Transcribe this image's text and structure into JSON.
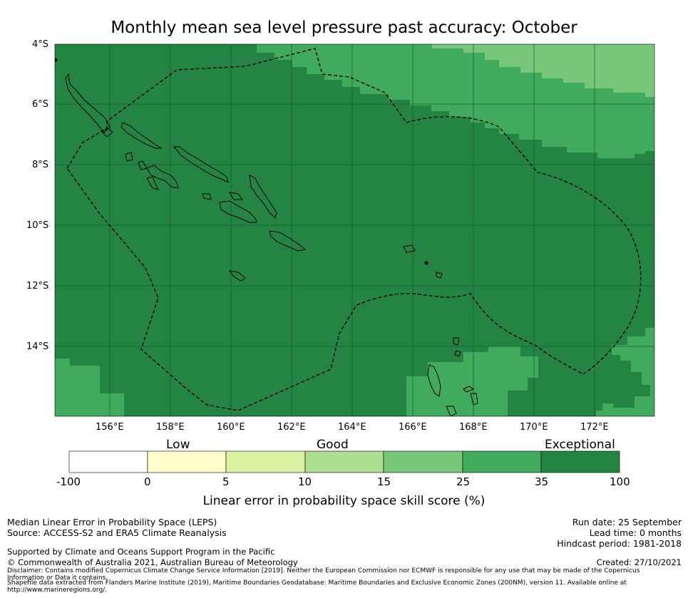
{
  "title": "Monthly mean sea level pressure past accuracy: October",
  "map": {
    "lat_labels": [
      "4°S",
      "6°S",
      "8°S",
      "10°S",
      "12°S",
      "14°S"
    ],
    "lon_labels": [
      "156°E",
      "158°E",
      "160°E",
      "162°E",
      "164°E",
      "166°E",
      "168°E",
      "170°E",
      "172°E"
    ],
    "colors": {
      "exceptional": "#238443",
      "very_good": "#41ab5d",
      "good": "#78c679"
    }
  },
  "colorbar": {
    "headers": {
      "low": "Low",
      "good": "Good",
      "exceptional": "Exceptional"
    },
    "ticks": [
      "-100",
      "0",
      "5",
      "10",
      "15",
      "25",
      "35",
      "100"
    ],
    "colors": [
      "#ffffff",
      "#ffffcc",
      "#d9f0a3",
      "#addd8e",
      "#78c679",
      "#41ab5d",
      "#238443"
    ],
    "label": "Linear error in probability space skill score (%)"
  },
  "footer": {
    "left": {
      "line1": "Median Linear Error in Probability Space (LEPS)",
      "line2": "Source: ACCESS-S2 and ERA5 Climate Reanalysis",
      "supported": "Supported by Climate and Oceans Support Program in the Pacific",
      "copyright": "© Commonwealth of Australia 2021, Australian Bureau of Meteorology"
    },
    "right": {
      "run_date": "Run date: 25 September",
      "lead_time": "Lead time: 0 months",
      "hindcast": "Hindcast period: 1981-2018",
      "created": "Created: 27/10/2021"
    },
    "disclaimer": "Disclaimer: Contains modified Copernicus Climate Change Service Information [2019]. Neither the European Commission nor ECMWF is responsible for any use that may be made of the Copernicus Information or Data it contains.",
    "shapefile": "Shapefile data extracted from Flanders Marine Institute (2019), Maritime Boundaries Geodatabase: Maritime Boundaries and Exclusive Economic Zones (200NM), version 11. Available online at http://www.marineregions.org/."
  }
}
